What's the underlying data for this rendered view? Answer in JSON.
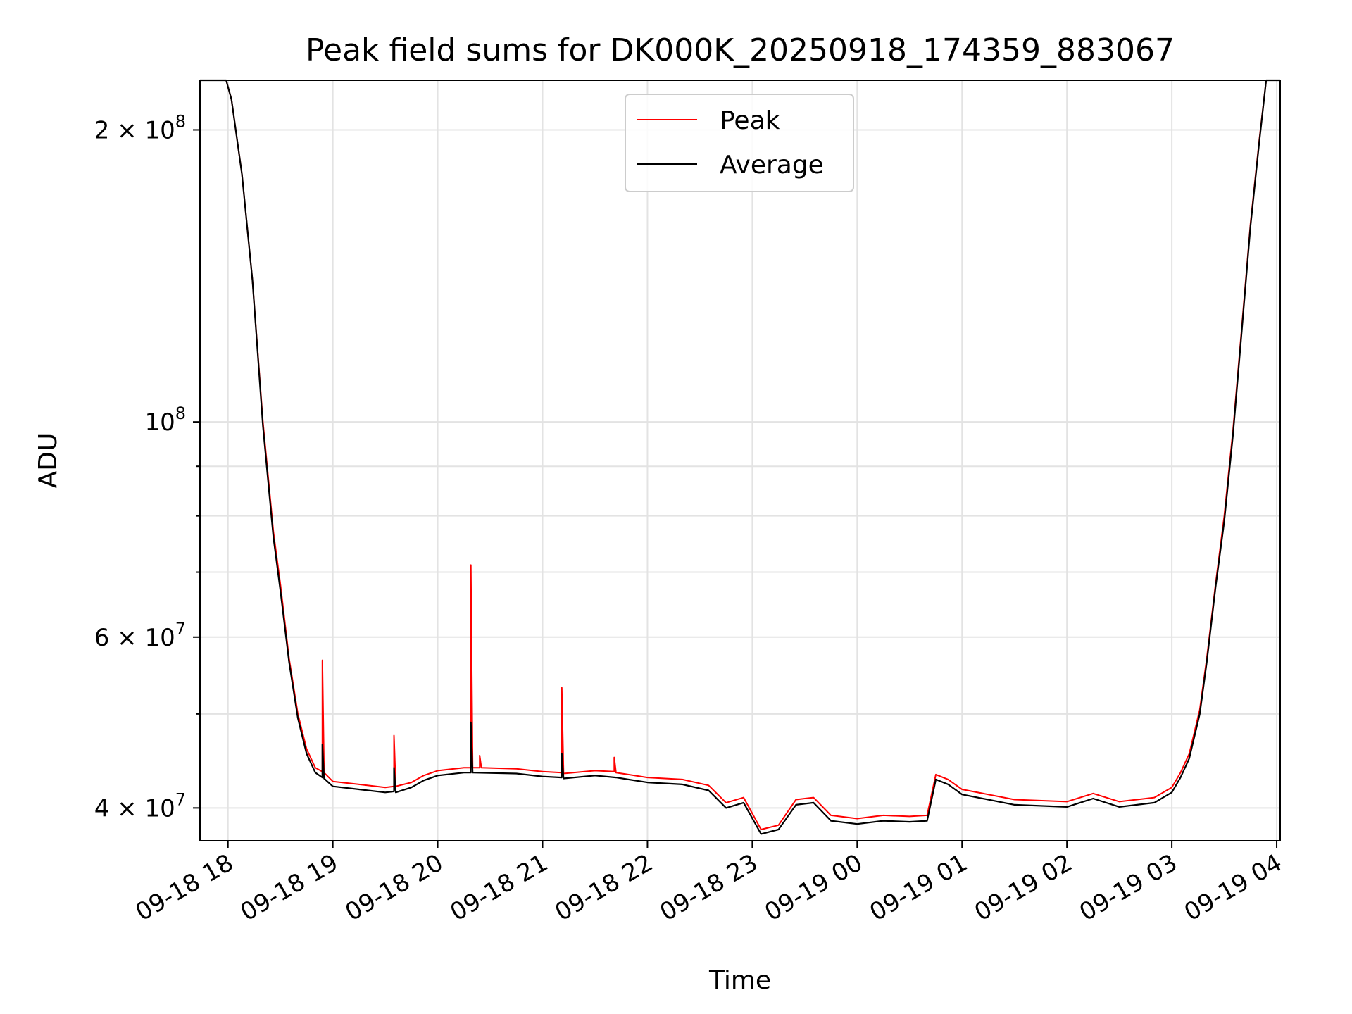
{
  "chart_data": {
    "type": "line",
    "title": "Peak field sums for DK000K_20250918_174359_883067",
    "xlabel": "Time",
    "ylabel": "ADU",
    "y_scale": "log",
    "ylim": [
      37000000,
      225000000
    ],
    "xlim": [
      "2025-09-18 17:44",
      "2025-09-19 04:02"
    ],
    "grid": true,
    "legend_position": "upper center",
    "x_ticks": [
      {
        "t": "2025-09-18 18:00",
        "label": "09-18 18"
      },
      {
        "t": "2025-09-18 19:00",
        "label": "09-18 19"
      },
      {
        "t": "2025-09-18 20:00",
        "label": "09-18 20"
      },
      {
        "t": "2025-09-18 21:00",
        "label": "09-18 21"
      },
      {
        "t": "2025-09-18 22:00",
        "label": "09-18 22"
      },
      {
        "t": "2025-09-18 23:00",
        "label": "09-18 23"
      },
      {
        "t": "2025-09-19 00:00",
        "label": "09-19 00"
      },
      {
        "t": "2025-09-19 01:00",
        "label": "09-19 01"
      },
      {
        "t": "2025-09-19 02:00",
        "label": "09-19 02"
      },
      {
        "t": "2025-09-19 03:00",
        "label": "09-19 03"
      },
      {
        "t": "2025-09-19 04:00",
        "label": "09-19 04"
      }
    ],
    "y_major_ticks": [
      {
        "v": 40000000,
        "mant": "4",
        "exp": "7"
      },
      {
        "v": 60000000,
        "mant": "6",
        "exp": "7"
      },
      {
        "v": 100000000,
        "mant": "",
        "exp": "8"
      },
      {
        "v": 200000000,
        "mant": "2",
        "exp": "8"
      }
    ],
    "y_minor_ticks": [
      50000000,
      70000000,
      80000000,
      90000000
    ],
    "series": [
      {
        "name": "Peak",
        "color": "#ff0000",
        "points": [
          [
            "2025-09-18 17:44",
            225000000
          ],
          [
            "2025-09-18 17:59",
            225000000
          ],
          [
            "2025-09-18 18:02",
            215000000
          ],
          [
            "2025-09-18 18:08",
            180000000
          ],
          [
            "2025-09-18 18:14",
            140000000
          ],
          [
            "2025-09-18 18:20",
            100000000
          ],
          [
            "2025-09-18 18:26",
            77000000
          ],
          [
            "2025-09-18 18:30",
            68000000
          ],
          [
            "2025-09-18 18:35",
            57000000
          ],
          [
            "2025-09-18 18:40",
            50000000
          ],
          [
            "2025-09-18 18:45",
            46000000
          ],
          [
            "2025-09-18 18:50",
            44000000
          ],
          [
            "2025-09-18 18:54",
            43600000
          ],
          [
            "2025-09-18 18:54",
            56800000
          ],
          [
            "2025-09-18 18:55",
            43500000
          ],
          [
            "2025-09-18 19:00",
            42600000
          ],
          [
            "2025-09-18 19:15",
            42300000
          ],
          [
            "2025-09-18 19:30",
            42000000
          ],
          [
            "2025-09-18 19:35",
            42100000
          ],
          [
            "2025-09-18 19:35",
            47500000
          ],
          [
            "2025-09-18 19:36",
            42100000
          ],
          [
            "2025-09-18 19:45",
            42500000
          ],
          [
            "2025-09-18 19:52",
            43200000
          ],
          [
            "2025-09-18 20:00",
            43700000
          ],
          [
            "2025-09-18 20:15",
            44000000
          ],
          [
            "2025-09-18 20:19",
            44000000
          ],
          [
            "2025-09-18 20:19",
            71200000
          ],
          [
            "2025-09-18 20:20",
            44000000
          ],
          [
            "2025-09-18 20:24",
            44000000
          ],
          [
            "2025-09-18 20:24",
            45300000
          ],
          [
            "2025-09-18 20:25",
            44000000
          ],
          [
            "2025-09-18 20:45",
            43900000
          ],
          [
            "2025-09-18 21:00",
            43600000
          ],
          [
            "2025-09-18 21:11",
            43500000
          ],
          [
            "2025-09-18 21:11",
            53200000
          ],
          [
            "2025-09-18 21:12",
            43400000
          ],
          [
            "2025-09-18 21:30",
            43700000
          ],
          [
            "2025-09-18 21:41",
            43600000
          ],
          [
            "2025-09-18 21:41",
            45100000
          ],
          [
            "2025-09-18 21:42",
            43500000
          ],
          [
            "2025-09-18 22:00",
            43000000
          ],
          [
            "2025-09-18 22:20",
            42800000
          ],
          [
            "2025-09-18 22:35",
            42200000
          ],
          [
            "2025-09-18 22:45",
            40500000
          ],
          [
            "2025-09-18 22:55",
            41000000
          ],
          [
            "2025-09-18 23:05",
            38000000
          ],
          [
            "2025-09-18 23:15",
            38400000
          ],
          [
            "2025-09-18 23:25",
            40800000
          ],
          [
            "2025-09-18 23:35",
            41000000
          ],
          [
            "2025-09-18 23:45",
            39300000
          ],
          [
            "2025-09-19 00:00",
            39000000
          ],
          [
            "2025-09-19 00:15",
            39300000
          ],
          [
            "2025-09-19 00:30",
            39200000
          ],
          [
            "2025-09-19 00:40",
            39300000
          ],
          [
            "2025-09-19 00:45",
            43300000
          ],
          [
            "2025-09-19 00:52",
            42800000
          ],
          [
            "2025-09-19 01:00",
            41800000
          ],
          [
            "2025-09-19 01:30",
            40800000
          ],
          [
            "2025-09-19 02:00",
            40600000
          ],
          [
            "2025-09-19 02:15",
            41400000
          ],
          [
            "2025-09-19 02:30",
            40600000
          ],
          [
            "2025-09-19 02:50",
            41000000
          ],
          [
            "2025-09-19 03:00",
            42000000
          ],
          [
            "2025-09-19 03:05",
            43500000
          ],
          [
            "2025-09-19 03:10",
            45500000
          ],
          [
            "2025-09-19 03:16",
            50500000
          ],
          [
            "2025-09-19 03:20",
            57000000
          ],
          [
            "2025-09-19 03:25",
            68000000
          ],
          [
            "2025-09-19 03:30",
            80000000
          ],
          [
            "2025-09-19 03:35",
            98000000
          ],
          [
            "2025-09-19 03:40",
            125000000
          ],
          [
            "2025-09-19 03:45",
            160000000
          ],
          [
            "2025-09-19 03:50",
            195000000
          ],
          [
            "2025-09-19 03:54",
            225000000
          ],
          [
            "2025-09-19 04:02",
            225000000
          ]
        ]
      },
      {
        "name": "Average",
        "color": "#000000",
        "points": [
          [
            "2025-09-18 17:44",
            225000000
          ],
          [
            "2025-09-18 17:59",
            225000000
          ],
          [
            "2025-09-18 18:02",
            215000000
          ],
          [
            "2025-09-18 18:08",
            180000000
          ],
          [
            "2025-09-18 18:14",
            140000000
          ],
          [
            "2025-09-18 18:20",
            99000000
          ],
          [
            "2025-09-18 18:26",
            76000000
          ],
          [
            "2025-09-18 18:30",
            67000000
          ],
          [
            "2025-09-18 18:35",
            56500000
          ],
          [
            "2025-09-18 18:40",
            49500000
          ],
          [
            "2025-09-18 18:45",
            45500000
          ],
          [
            "2025-09-18 18:50",
            43500000
          ],
          [
            "2025-09-18 18:54",
            43000000
          ],
          [
            "2025-09-18 18:54",
            46500000
          ],
          [
            "2025-09-18 18:55",
            42900000
          ],
          [
            "2025-09-18 19:00",
            42100000
          ],
          [
            "2025-09-18 19:15",
            41800000
          ],
          [
            "2025-09-18 19:30",
            41500000
          ],
          [
            "2025-09-18 19:35",
            41600000
          ],
          [
            "2025-09-18 19:35",
            44000000
          ],
          [
            "2025-09-18 19:36",
            41500000
          ],
          [
            "2025-09-18 19:45",
            42000000
          ],
          [
            "2025-09-18 19:52",
            42700000
          ],
          [
            "2025-09-18 20:00",
            43200000
          ],
          [
            "2025-09-18 20:15",
            43500000
          ],
          [
            "2025-09-18 20:19",
            43500000
          ],
          [
            "2025-09-18 20:19",
            49000000
          ],
          [
            "2025-09-18 20:20",
            43500000
          ],
          [
            "2025-09-18 20:45",
            43400000
          ],
          [
            "2025-09-18 21:00",
            43100000
          ],
          [
            "2025-09-18 21:11",
            43000000
          ],
          [
            "2025-09-18 21:11",
            45500000
          ],
          [
            "2025-09-18 21:12",
            42900000
          ],
          [
            "2025-09-18 21:30",
            43200000
          ],
          [
            "2025-09-18 21:42",
            43000000
          ],
          [
            "2025-09-18 22:00",
            42500000
          ],
          [
            "2025-09-18 22:20",
            42300000
          ],
          [
            "2025-09-18 22:35",
            41700000
          ],
          [
            "2025-09-18 22:45",
            40000000
          ],
          [
            "2025-09-18 22:55",
            40500000
          ],
          [
            "2025-09-18 23:05",
            37600000
          ],
          [
            "2025-09-18 23:15",
            38000000
          ],
          [
            "2025-09-18 23:25",
            40300000
          ],
          [
            "2025-09-18 23:35",
            40500000
          ],
          [
            "2025-09-18 23:45",
            38800000
          ],
          [
            "2025-09-19 00:00",
            38500000
          ],
          [
            "2025-09-19 00:15",
            38800000
          ],
          [
            "2025-09-19 00:30",
            38700000
          ],
          [
            "2025-09-19 00:40",
            38800000
          ],
          [
            "2025-09-19 00:45",
            42800000
          ],
          [
            "2025-09-19 00:52",
            42300000
          ],
          [
            "2025-09-19 01:00",
            41300000
          ],
          [
            "2025-09-19 01:30",
            40300000
          ],
          [
            "2025-09-19 02:00",
            40100000
          ],
          [
            "2025-09-19 02:15",
            40900000
          ],
          [
            "2025-09-19 02:30",
            40100000
          ],
          [
            "2025-09-19 02:50",
            40500000
          ],
          [
            "2025-09-19 03:00",
            41500000
          ],
          [
            "2025-09-19 03:05",
            43000000
          ],
          [
            "2025-09-19 03:10",
            45000000
          ],
          [
            "2025-09-19 03:16",
            50000000
          ],
          [
            "2025-09-19 03:20",
            56500000
          ],
          [
            "2025-09-19 03:25",
            67500000
          ],
          [
            "2025-09-19 03:30",
            79000000
          ],
          [
            "2025-09-19 03:35",
            97000000
          ],
          [
            "2025-09-19 03:40",
            124000000
          ],
          [
            "2025-09-19 03:45",
            159000000
          ],
          [
            "2025-09-19 03:50",
            194000000
          ],
          [
            "2025-09-19 03:54",
            225000000
          ],
          [
            "2025-09-19 04:02",
            225000000
          ]
        ]
      }
    ]
  }
}
